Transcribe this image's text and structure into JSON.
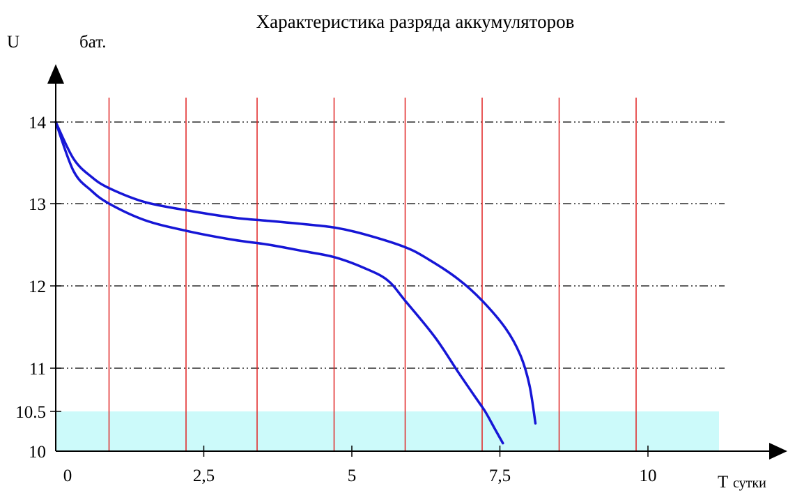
{
  "chart_data": {
    "type": "line",
    "title": "Характеристика разряда аккумуляторов",
    "ylabel_symbol": "U",
    "ylabel_subscript": "бат.",
    "xlabel_symbol": "T",
    "xlabel_subscript": "сутки",
    "x_ticks": [
      {
        "value": 0,
        "label": "0"
      },
      {
        "value": 2.5,
        "label": "2,5"
      },
      {
        "value": 5,
        "label": "5"
      },
      {
        "value": 7.5,
        "label": "7,5"
      },
      {
        "value": 10,
        "label": "10"
      }
    ],
    "y_ticks": [
      {
        "value": 10,
        "label": "10"
      },
      {
        "value": 10.5,
        "label": "10.5"
      },
      {
        "value": 11,
        "label": "11"
      },
      {
        "value": 12,
        "label": "12"
      },
      {
        "value": 13,
        "label": "13"
      },
      {
        "value": 14,
        "label": "14"
      }
    ],
    "xlim": [
      0,
      11.2
    ],
    "ylim": [
      10,
      14
    ],
    "vertical_gridlines_x": [
      0.9,
      2.2,
      3.4,
      4.7,
      5.9,
      7.2,
      8.5,
      9.8
    ],
    "horizontal_gridlines_y": [
      11,
      12,
      13,
      14
    ],
    "threshold_band": {
      "from": 10,
      "to": 10.5,
      "color": "#ccfafa"
    },
    "colors": {
      "curve": "#1616d6",
      "vertical_grid": "#e02020",
      "grid": "#000000"
    },
    "series": [
      {
        "x": [
          0,
          0.3,
          0.6,
          0.9,
          1.5,
          2.2,
          3.0,
          3.6,
          4.2,
          4.7,
          5.2,
          5.9,
          6.3,
          6.8,
          7.2,
          7.6,
          7.85,
          8.0,
          8.1
        ],
        "y": [
          14,
          13.55,
          13.33,
          13.19,
          13.02,
          12.92,
          12.83,
          12.79,
          12.75,
          12.71,
          12.63,
          12.47,
          12.32,
          12.08,
          11.82,
          11.48,
          11.15,
          10.8,
          10.35
        ]
      },
      {
        "x": [
          0,
          0.3,
          0.6,
          0.9,
          1.5,
          2.2,
          3.0,
          3.6,
          4.2,
          4.7,
          5.2,
          5.6,
          5.9,
          6.4,
          6.8,
          7.1,
          7.25,
          7.4,
          7.55
        ],
        "y": [
          14,
          13.4,
          13.16,
          13.0,
          12.8,
          12.67,
          12.56,
          12.5,
          12.42,
          12.35,
          12.22,
          12.07,
          11.82,
          11.38,
          10.95,
          10.65,
          10.5,
          10.3,
          10.1
        ]
      }
    ]
  }
}
